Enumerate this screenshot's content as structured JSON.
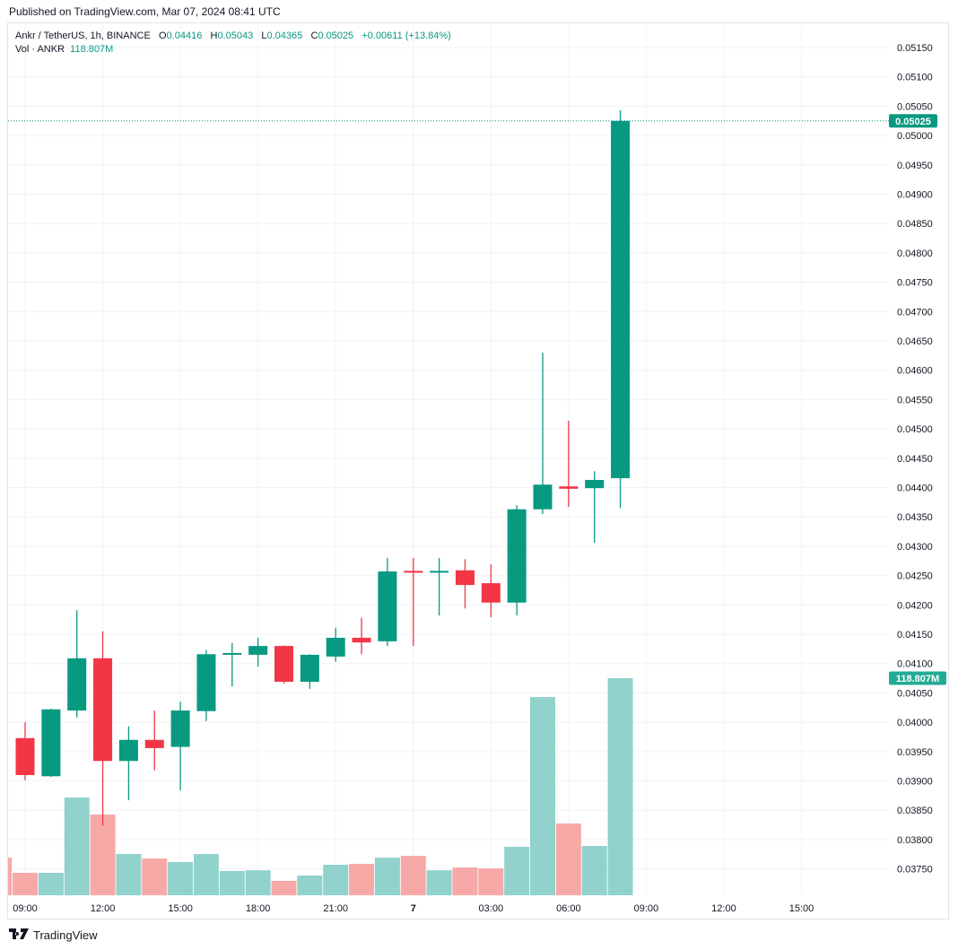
{
  "published": "Published on TradingView.com, Mar 07, 2024 08:41 UTC",
  "legend": {
    "symbol": "Ankr / TetherUS, 1h, BINANCE",
    "o_label": "O",
    "o": "0.04416",
    "h_label": "H",
    "h": "0.05043",
    "l_label": "L",
    "l": "0.04365",
    "c_label": "C",
    "c": "0.05025",
    "change": "+0.00611 (+13.84%)",
    "vol_label": "Vol · ANKR",
    "vol": "118.807M"
  },
  "price_badge": "0.05025",
  "volume_badge": "118.807M",
  "logo_text": "TradingView",
  "colors": {
    "up": "#089981",
    "down": "#f23645",
    "vol_up": "#92d2cc",
    "vol_down": "#f7a9a7",
    "grid": "#f0f3fa"
  },
  "chart_data": {
    "type": "candlestick",
    "title": "Ankr / TetherUS, 1h, BINANCE",
    "y_ticks": [
      "0.05150",
      "0.05100",
      "0.05050",
      "0.05000",
      "0.04950",
      "0.04900",
      "0.04850",
      "0.04800",
      "0.04750",
      "0.04700",
      "0.04650",
      "0.04600",
      "0.04550",
      "0.04500",
      "0.04450",
      "0.04400",
      "0.04350",
      "0.04300",
      "0.04250",
      "0.04200",
      "0.04150",
      "0.04100",
      "0.04050",
      "0.04000",
      "0.03950",
      "0.03900",
      "0.03850",
      "0.03800",
      "0.03750"
    ],
    "ylim": [
      0.0374,
      0.0518
    ],
    "x_ticks": [
      {
        "label": "09:00",
        "slot": 0
      },
      {
        "label": "12:00",
        "slot": 3
      },
      {
        "label": "15:00",
        "slot": 6
      },
      {
        "label": "18:00",
        "slot": 9
      },
      {
        "label": "21:00",
        "slot": 12
      },
      {
        "label": "7",
        "slot": 15
      },
      {
        "label": "03:00",
        "slot": 18
      },
      {
        "label": "06:00",
        "slot": 21
      },
      {
        "label": "09:00",
        "slot": 24
      },
      {
        "label": "12:00",
        "slot": 27
      },
      {
        "label": "15:00",
        "slot": 30
      }
    ],
    "candles": [
      {
        "t": "09:00",
        "o": 0.03973,
        "h": 0.04,
        "l": 0.03901,
        "c": 0.0391,
        "v": 12.3
      },
      {
        "t": "10:00",
        "o": 0.03908,
        "h": 0.04023,
        "l": 0.03907,
        "c": 0.04022,
        "v": 12.3
      },
      {
        "t": "11:00",
        "o": 0.0402,
        "h": 0.04191,
        "l": 0.04008,
        "c": 0.04109,
        "v": 53.5
      },
      {
        "t": "12:00",
        "o": 0.04109,
        "h": 0.04155,
        "l": 0.03824,
        "c": 0.03934,
        "v": 44.2
      },
      {
        "t": "13:00",
        "o": 0.03934,
        "h": 0.03993,
        "l": 0.03867,
        "c": 0.0397,
        "v": 22.6
      },
      {
        "t": "14:00",
        "o": 0.0397,
        "h": 0.0402,
        "l": 0.03918,
        "c": 0.03956,
        "v": 20.1
      },
      {
        "t": "15:00",
        "o": 0.03958,
        "h": 0.04035,
        "l": 0.03884,
        "c": 0.0402,
        "v": 18.2
      },
      {
        "t": "16:00",
        "o": 0.04019,
        "h": 0.04123,
        "l": 0.04002,
        "c": 0.04116,
        "v": 22.6
      },
      {
        "t": "17:00",
        "o": 0.04115,
        "h": 0.04135,
        "l": 0.04061,
        "c": 0.04118,
        "v": 13.3
      },
      {
        "t": "18:00",
        "o": 0.04115,
        "h": 0.04144,
        "l": 0.04095,
        "c": 0.0413,
        "v": 13.7
      },
      {
        "t": "19:00",
        "o": 0.0413,
        "h": 0.04131,
        "l": 0.04066,
        "c": 0.04069,
        "v": 7.9
      },
      {
        "t": "20:00",
        "o": 0.04069,
        "h": 0.04116,
        "l": 0.04057,
        "c": 0.04115,
        "v": 10.8
      },
      {
        "t": "21:00",
        "o": 0.04112,
        "h": 0.04161,
        "l": 0.04103,
        "c": 0.04144,
        "v": 16.7
      },
      {
        "t": "22:00",
        "o": 0.04144,
        "h": 0.04178,
        "l": 0.04116,
        "c": 0.04136,
        "v": 17.2
      },
      {
        "t": "23:00",
        "o": 0.04138,
        "h": 0.0428,
        "l": 0.0413,
        "c": 0.04257,
        "v": 20.6
      },
      {
        "t": "00:00",
        "o": 0.04258,
        "h": 0.0428,
        "l": 0.0413,
        "c": 0.04257,
        "v": 21.6
      },
      {
        "t": "01:00",
        "o": 0.04257,
        "h": 0.0428,
        "l": 0.04182,
        "c": 0.04258,
        "v": 13.7
      },
      {
        "t": "02:00",
        "o": 0.04259,
        "h": 0.04278,
        "l": 0.04194,
        "c": 0.04234,
        "v": 15.2
      },
      {
        "t": "03:00",
        "o": 0.04237,
        "h": 0.04269,
        "l": 0.04179,
        "c": 0.04204,
        "v": 14.7
      },
      {
        "t": "04:00",
        "o": 0.04204,
        "h": 0.0437,
        "l": 0.04182,
        "c": 0.04363,
        "v": 26.5
      },
      {
        "t": "05:00",
        "o": 0.04363,
        "h": 0.0463,
        "l": 0.04355,
        "c": 0.04405,
        "v": 108.5
      },
      {
        "t": "06:00",
        "o": 0.04402,
        "h": 0.04514,
        "l": 0.04367,
        "c": 0.04398,
        "v": 39.3
      },
      {
        "t": "07:00",
        "o": 0.04399,
        "h": 0.04428,
        "l": 0.04306,
        "c": 0.04413,
        "v": 27.0
      },
      {
        "t": "08:00",
        "o": 0.04416,
        "h": 0.05043,
        "l": 0.04365,
        "c": 0.05025,
        "v": 118.807
      }
    ],
    "prior_volume": {
      "t": "08:00 (prev)",
      "v": 20.6,
      "dir": "down"
    },
    "volume_unit": "M"
  }
}
